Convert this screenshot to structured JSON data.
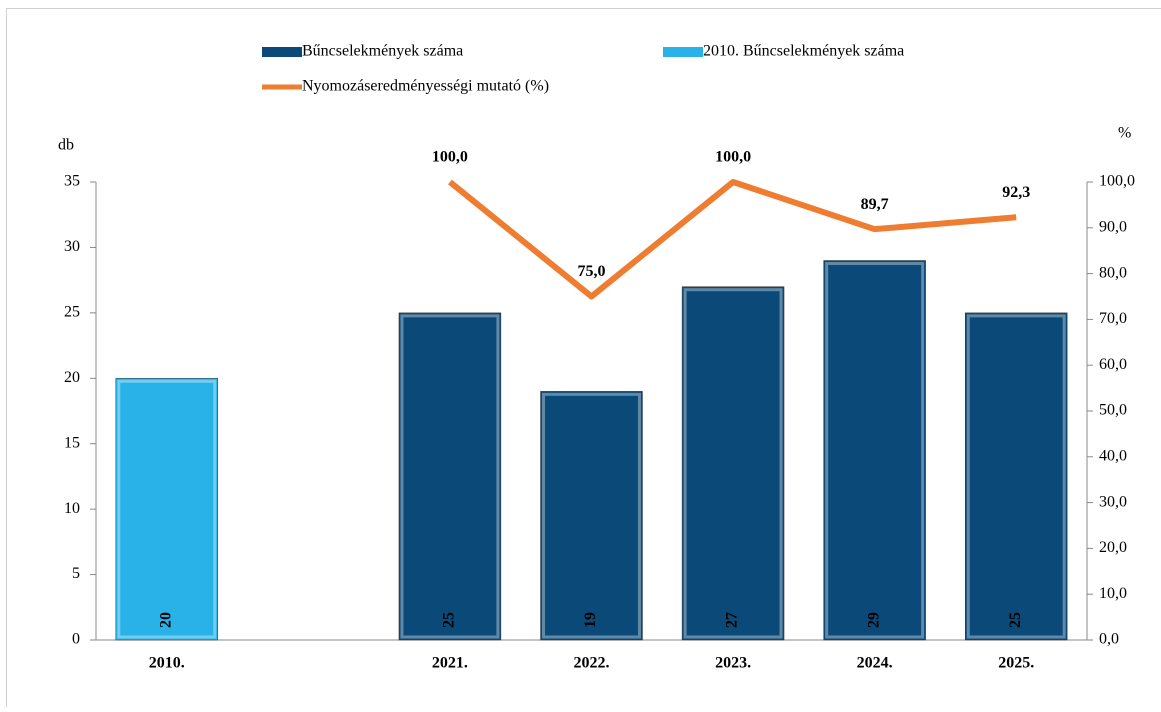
{
  "chart_data": {
    "type": "bar",
    "categories": [
      "2010.",
      null,
      "2021.",
      "2022.",
      "2023.",
      "2024.",
      "2025."
    ],
    "series": [
      {
        "name": "Bűncselekmények száma",
        "color": "#0b4a78",
        "values": [
          null,
          null,
          25,
          19,
          27,
          29,
          25
        ]
      },
      {
        "name": "2010. Bűncselekmények száma",
        "color": "#29b2e8",
        "values": [
          20,
          null,
          null,
          null,
          null,
          null,
          null
        ]
      },
      {
        "name": "Nyomozáseredményességi mutató (%)",
        "color": "#ee7d31",
        "type": "line",
        "axis": "y2",
        "values": [
          null,
          null,
          100,
          75,
          100,
          89.7,
          92.3
        ],
        "value_labels": [
          null,
          null,
          "100,0",
          "75,0",
          "100,0",
          "89,7",
          "92,3"
        ]
      }
    ],
    "ylabel": "db",
    "y2label": "%",
    "ylim": [
      0,
      35
    ],
    "yticks": [
      0,
      5,
      10,
      15,
      20,
      25,
      30,
      35
    ],
    "y2lim": [
      0,
      100
    ],
    "y2ticks": [
      {
        "value": 0,
        "label": "0,0"
      },
      {
        "value": 10,
        "label": "10,0"
      },
      {
        "value": 20,
        "label": "20,0"
      },
      {
        "value": 30,
        "label": "30,0"
      },
      {
        "value": 40,
        "label": "40,0"
      },
      {
        "value": 50,
        "label": "50,0"
      },
      {
        "value": 60,
        "label": "60,0"
      },
      {
        "value": 70,
        "label": "70,0"
      },
      {
        "value": 80,
        "label": "80,0"
      },
      {
        "value": 90,
        "label": "90,0"
      },
      {
        "value": 100,
        "label": "100,0"
      }
    ],
    "grid": false,
    "legend": "top"
  }
}
